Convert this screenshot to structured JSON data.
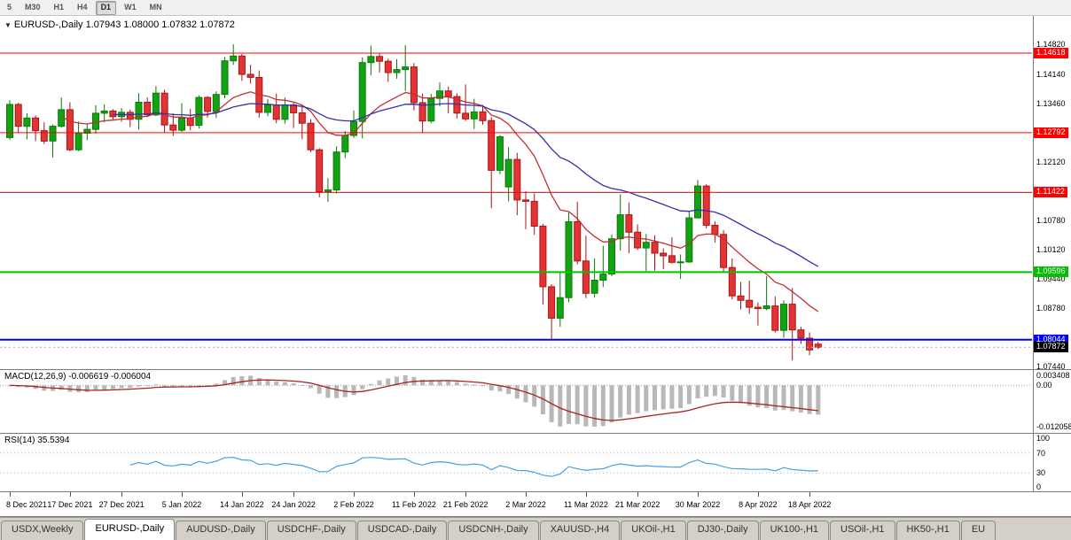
{
  "toolbar": {
    "timeframes": [
      "5",
      "M30",
      "H1",
      "H4",
      "D1",
      "W1",
      "MN"
    ],
    "active_timeframe": "D1"
  },
  "icons": {
    "chart_menu": "▼"
  },
  "main_chart": {
    "title": "EURUSD-,Daily",
    "quote_line": "1.07943 1.08000 1.07832 1.07872"
  },
  "macd_panel": {
    "label": "MACD(12,26,9) -0.006619 -0.006004",
    "axis_labels": [
      "0.003408",
      "0.00",
      "-0.012058"
    ]
  },
  "rsi_panel": {
    "label": "RSI(14) 35.5394",
    "axis_labels": [
      "100",
      "70",
      "30",
      "0"
    ]
  },
  "tabs": [
    "USDX,Weekly",
    "EURUSD-,Daily",
    "AUDUSD-,Daily",
    "USDCHF-,Daily",
    "USDCAD-,Daily",
    "USDCNH-,Daily",
    "XAUUSD-,H4",
    "UKOil-,H1",
    "DJ30-,Daily",
    "UK100-,H1",
    "USOil-,H1",
    "HK50-,H1",
    "EU"
  ],
  "active_tab": "EURUSD-,Daily",
  "chart_data": {
    "type": "candlestick",
    "symbol": "EURUSD-",
    "timeframe": "Daily",
    "ohlc_current": {
      "open": 1.07943,
      "high": 1.08,
      "low": 1.07832,
      "close": 1.07872
    },
    "price_range": [
      1.0735,
      1.1547
    ],
    "current_price": 1.07872,
    "current_price_label": "1.07872",
    "y_axis_ticks": [
      {
        "value": 1.1482,
        "label": "1.14820"
      },
      {
        "value": 1.1414,
        "label": "1.14140"
      },
      {
        "value": 1.1346,
        "label": "1.13460"
      },
      {
        "value": 1.1212,
        "label": "1.12120"
      },
      {
        "value": 1.1078,
        "label": "1.10780"
      },
      {
        "value": 1.1012,
        "label": "1.10120"
      },
      {
        "value": 1.0944,
        "label": "1.09440"
      },
      {
        "value": 1.0878,
        "label": "1.08780"
      },
      {
        "value": 1.0744,
        "label": "1.07440"
      }
    ],
    "hlines": [
      {
        "price": 1.14618,
        "label": "1.14618",
        "color": "#ff0000",
        "width": 1
      },
      {
        "price": 1.12792,
        "label": "1.12792",
        "color": "#ff0000",
        "width": 1
      },
      {
        "price": 1.11422,
        "label": "1.11422",
        "color": "#ff0000",
        "width": 1
      },
      {
        "price": 1.09596,
        "label": "1.09596",
        "color": "#00c000",
        "width": 2
      },
      {
        "price": 1.08044,
        "label": "1.08044",
        "color": "#0000ff",
        "width": 2
      }
    ],
    "x_ticks": [
      {
        "index": 0,
        "label": "8 Dec 2021"
      },
      {
        "index": 7,
        "label": "17 Dec 2021"
      },
      {
        "index": 13,
        "label": "27 Dec 2021"
      },
      {
        "index": 20,
        "label": "5 Jan 2022"
      },
      {
        "index": 27,
        "label": "14 Jan 2022"
      },
      {
        "index": 33,
        "label": "24 Jan 2022"
      },
      {
        "index": 40,
        "label": "2 Feb 2022"
      },
      {
        "index": 47,
        "label": "11 Feb 2022"
      },
      {
        "index": 53,
        "label": "21 Feb 2022"
      },
      {
        "index": 60,
        "label": "2 Mar 2022"
      },
      {
        "index": 67,
        "label": "11 Mar 2022"
      },
      {
        "index": 73,
        "label": "21 Mar 2022"
      },
      {
        "index": 80,
        "label": "30 Mar 2022"
      },
      {
        "index": 87,
        "label": "8 Apr 2022"
      },
      {
        "index": 93,
        "label": "18 Apr 2022"
      }
    ],
    "colors": {
      "bull": "#12a312",
      "bull_stroke": "#0a7a0a",
      "bear": "#e23434",
      "bear_stroke": "#a81414",
      "current_line": "#aaaaaa"
    },
    "moving_averages": [
      {
        "period": 13,
        "color": "#c03030",
        "start": 6
      },
      {
        "period": 34,
        "color": "#3030b0",
        "start": 12
      }
    ],
    "macd": {
      "fast": 12,
      "slow": 26,
      "signal": 9,
      "histogram_color": "#b8b8b8",
      "signal_color": "#aa2222",
      "current_main": -0.006619,
      "current_signal": -0.006004
    },
    "rsi": {
      "period": 14,
      "color": "#4aa0e0",
      "levels": [
        70,
        30
      ],
      "current": 35.5394
    },
    "candles": [
      [
        1.1268,
        1.1354,
        1.1263,
        1.1344
      ],
      [
        1.1344,
        1.1348,
        1.128,
        1.1294
      ],
      [
        1.1294,
        1.1324,
        1.1264,
        1.1313
      ],
      [
        1.1313,
        1.1319,
        1.126,
        1.1284
      ],
      [
        1.1284,
        1.1303,
        1.1253,
        1.126
      ],
      [
        1.126,
        1.1298,
        1.1222,
        1.1294
      ],
      [
        1.1294,
        1.136,
        1.1291,
        1.1332
      ],
      [
        1.1332,
        1.1349,
        1.1237,
        1.124
      ],
      [
        1.124,
        1.1305,
        1.1237,
        1.1278
      ],
      [
        1.1278,
        1.13,
        1.1262,
        1.1287
      ],
      [
        1.1287,
        1.1342,
        1.1277,
        1.1324
      ],
      [
        1.1324,
        1.1344,
        1.1303,
        1.1329
      ],
      [
        1.1329,
        1.1333,
        1.1308,
        1.1316
      ],
      [
        1.1316,
        1.1336,
        1.1304,
        1.1326
      ],
      [
        1.1326,
        1.1332,
        1.1292,
        1.131
      ],
      [
        1.131,
        1.137,
        1.1286,
        1.1349
      ],
      [
        1.1349,
        1.136,
        1.1315,
        1.132
      ],
      [
        1.132,
        1.1386,
        1.1317,
        1.137
      ],
      [
        1.137,
        1.1378,
        1.1279,
        1.1297
      ],
      [
        1.1297,
        1.1324,
        1.1272,
        1.1285
      ],
      [
        1.1285,
        1.1347,
        1.1281,
        1.1313
      ],
      [
        1.1313,
        1.1334,
        1.1285,
        1.1296
      ],
      [
        1.1296,
        1.1365,
        1.1289,
        1.136
      ],
      [
        1.136,
        1.1363,
        1.1314,
        1.1328
      ],
      [
        1.1328,
        1.1374,
        1.1313,
        1.1367
      ],
      [
        1.1367,
        1.1453,
        1.1358,
        1.1444
      ],
      [
        1.1444,
        1.1482,
        1.1435,
        1.1455
      ],
      [
        1.1455,
        1.146,
        1.1398,
        1.1413
      ],
      [
        1.1413,
        1.1435,
        1.1392,
        1.1406
      ],
      [
        1.1406,
        1.1422,
        1.1314,
        1.1326
      ],
      [
        1.1326,
        1.1357,
        1.1317,
        1.1343
      ],
      [
        1.1343,
        1.1369,
        1.1301,
        1.131
      ],
      [
        1.131,
        1.136,
        1.13,
        1.1343
      ],
      [
        1.1343,
        1.1349,
        1.129,
        1.1325
      ],
      [
        1.1325,
        1.1338,
        1.1264,
        1.1301
      ],
      [
        1.1301,
        1.131,
        1.1235,
        1.124
      ],
      [
        1.124,
        1.1244,
        1.1131,
        1.1144
      ],
      [
        1.1144,
        1.1175,
        1.1121,
        1.1148
      ],
      [
        1.1148,
        1.1248,
        1.114,
        1.1235
      ],
      [
        1.1235,
        1.1283,
        1.1221,
        1.1273
      ],
      [
        1.1273,
        1.133,
        1.1267,
        1.1305
      ],
      [
        1.1305,
        1.1452,
        1.1266,
        1.144
      ],
      [
        1.144,
        1.1479,
        1.1411,
        1.1454
      ],
      [
        1.1454,
        1.1462,
        1.1417,
        1.1443
      ],
      [
        1.1443,
        1.1449,
        1.1396,
        1.1417
      ],
      [
        1.1417,
        1.1448,
        1.1403,
        1.1424
      ],
      [
        1.1424,
        1.148,
        1.1375,
        1.143
      ],
      [
        1.143,
        1.1439,
        1.133,
        1.1348
      ],
      [
        1.1348,
        1.1369,
        1.128,
        1.1306
      ],
      [
        1.1306,
        1.1368,
        1.1301,
        1.1358
      ],
      [
        1.1358,
        1.1395,
        1.134,
        1.1375
      ],
      [
        1.1375,
        1.1385,
        1.1324,
        1.1362
      ],
      [
        1.1362,
        1.137,
        1.1312,
        1.1324
      ],
      [
        1.1324,
        1.139,
        1.1306,
        1.1311
      ],
      [
        1.1311,
        1.1357,
        1.1288,
        1.1327
      ],
      [
        1.1327,
        1.1343,
        1.1298,
        1.1307
      ],
      [
        1.1307,
        1.1315,
        1.1106,
        1.1193
      ],
      [
        1.1193,
        1.1274,
        1.1184,
        1.127
      ],
      [
        1.1155,
        1.1246,
        1.1122,
        1.1218
      ],
      [
        1.1218,
        1.1233,
        1.109,
        1.1125
      ],
      [
        1.1125,
        1.1145,
        1.1058,
        1.1122
      ],
      [
        1.1122,
        1.114,
        1.1045,
        1.1065
      ],
      [
        1.1065,
        1.107,
        1.0885,
        1.0926
      ],
      [
        1.0926,
        1.0932,
        1.0806,
        1.0854
      ],
      [
        1.0854,
        1.0958,
        1.0834,
        1.0901
      ],
      [
        1.0901,
        1.1096,
        1.0891,
        1.1075
      ],
      [
        1.1075,
        1.1121,
        1.0977,
        1.0985
      ],
      [
        1.0985,
        1.1043,
        1.09,
        1.0911
      ],
      [
        1.0911,
        1.0991,
        1.0901,
        1.0941
      ],
      [
        1.0941,
        1.102,
        1.0925,
        1.0955
      ],
      [
        1.0955,
        1.1046,
        1.095,
        1.1036
      ],
      [
        1.1036,
        1.1138,
        1.1009,
        1.1091
      ],
      [
        1.1091,
        1.1119,
        1.1003,
        1.1051
      ],
      [
        1.1051,
        1.1069,
        1.101,
        1.1015
      ],
      [
        1.1015,
        1.1047,
        1.0962,
        1.1028
      ],
      [
        1.1028,
        1.1044,
        1.0963,
        1.1003
      ],
      [
        1.1003,
        1.1014,
        1.0966,
        1.0997
      ],
      [
        1.0997,
        1.1039,
        1.0979,
        1.0982
      ],
      [
        1.0982,
        1.1,
        1.0944,
        1.0983
      ],
      [
        1.0983,
        1.11,
        1.0981,
        1.1084
      ],
      [
        1.1084,
        1.1171,
        1.1084,
        1.1157
      ],
      [
        1.1157,
        1.1161,
        1.106,
        1.1067
      ],
      [
        1.1067,
        1.1076,
        1.1027,
        1.1046
      ],
      [
        1.1046,
        1.1056,
        1.096,
        1.097
      ],
      [
        1.097,
        1.0991,
        1.0897,
        1.0905
      ],
      [
        1.0905,
        1.0937,
        1.0874,
        1.0895
      ],
      [
        1.0895,
        1.094,
        1.0864,
        1.0879
      ],
      [
        1.0879,
        1.089,
        1.0837,
        1.0876
      ],
      [
        1.0876,
        1.095,
        1.0872,
        1.0882
      ],
      [
        1.0882,
        1.0904,
        1.0821,
        1.0826
      ],
      [
        1.0826,
        1.0895,
        1.0809,
        1.0886
      ],
      [
        1.0886,
        1.0923,
        1.0757,
        1.0827
      ],
      [
        1.0827,
        1.0834,
        1.0795,
        1.0808
      ],
      [
        1.0808,
        1.0821,
        1.0769,
        1.0781
      ],
      [
        1.07943,
        1.08,
        1.07832,
        1.07872
      ]
    ]
  }
}
